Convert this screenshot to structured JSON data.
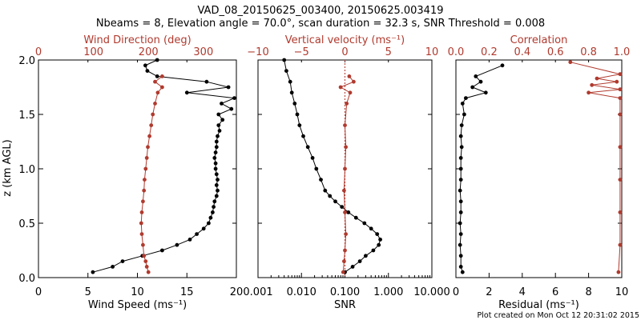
{
  "figure": {
    "title_line1": "VAD_08_20150625_003400, 20150625.003419",
    "title_line2": "Nbeams = 8, Elevation angle = 70.0°, scan duration = 32.3 s, SNR Threshold = 0.008",
    "footer": "Plot created on Mon Oct 12 20:31:02 2015",
    "y_label": "z (km AGL)",
    "colors": {
      "primary": "#000000",
      "secondary": "#b03a2e"
    }
  },
  "chart_data": [
    {
      "type": "line",
      "panel": "wind",
      "xlabel": "Wind Speed (ms⁻¹)",
      "x2label": "Wind Direction (deg)",
      "ylabel": "z (km AGL)",
      "xlim": [
        0,
        20
      ],
      "x2lim": [
        0,
        360
      ],
      "ylim": [
        0,
        2
      ],
      "xticks": [
        "0",
        "5",
        "10",
        "15",
        "20"
      ],
      "x2ticks": [
        "0",
        "100",
        "200",
        "300"
      ],
      "yticks": [
        "0.0",
        "0.5",
        "1.0",
        "1.5",
        "2.0"
      ],
      "series": [
        {
          "axis": "bottom",
          "color": "#000000",
          "points": [
            [
              5.5,
              0.05
            ],
            [
              7.5,
              0.1
            ],
            [
              8.5,
              0.15
            ],
            [
              10.5,
              0.2
            ],
            [
              12.5,
              0.25
            ],
            [
              14.0,
              0.3
            ],
            [
              15.3,
              0.35
            ],
            [
              16.0,
              0.4
            ],
            [
              16.7,
              0.45
            ],
            [
              17.2,
              0.5
            ],
            [
              17.4,
              0.55
            ],
            [
              17.6,
              0.6
            ],
            [
              17.7,
              0.65
            ],
            [
              17.8,
              0.7
            ],
            [
              18.0,
              0.75
            ],
            [
              18.1,
              0.8
            ],
            [
              18.0,
              0.85
            ],
            [
              18.1,
              0.9
            ],
            [
              18.0,
              0.95
            ],
            [
              17.9,
              1.0
            ],
            [
              17.9,
              1.05
            ],
            [
              17.8,
              1.1
            ],
            [
              17.9,
              1.15
            ],
            [
              18.0,
              1.2
            ],
            [
              18.0,
              1.25
            ],
            [
              18.1,
              1.3
            ],
            [
              18.3,
              1.35
            ],
            [
              18.2,
              1.4
            ],
            [
              18.6,
              1.45
            ],
            [
              18.2,
              1.5
            ],
            [
              19.5,
              1.55
            ],
            [
              18.5,
              1.6
            ],
            [
              19.8,
              1.65
            ],
            [
              15.0,
              1.7
            ],
            [
              19.2,
              1.75
            ],
            [
              17.0,
              1.8
            ],
            [
              12.0,
              1.85
            ],
            [
              11.0,
              1.9
            ],
            [
              10.8,
              1.95
            ],
            [
              12.0,
              2.0
            ]
          ]
        },
        {
          "axis": "top",
          "color": "#b03a2e",
          "points": [
            [
              200,
              0.05
            ],
            [
              197,
              0.1
            ],
            [
              195,
              0.15
            ],
            [
              192,
              0.2
            ],
            [
              190,
              0.3
            ],
            [
              188,
              0.4
            ],
            [
              187,
              0.5
            ],
            [
              188,
              0.6
            ],
            [
              190,
              0.7
            ],
            [
              192,
              0.8
            ],
            [
              193,
              0.9
            ],
            [
              195,
              1.0
            ],
            [
              197,
              1.1
            ],
            [
              199,
              1.2
            ],
            [
              202,
              1.3
            ],
            [
              205,
              1.4
            ],
            [
              208,
              1.5
            ],
            [
              212,
              1.6
            ],
            [
              217,
              1.7
            ],
            [
              225,
              1.75
            ],
            [
              212,
              1.8
            ],
            [
              225,
              1.85
            ]
          ]
        }
      ]
    },
    {
      "type": "line",
      "panel": "vertical",
      "xlabel": "SNR",
      "x2label": "Vertical velocity (ms⁻¹)",
      "xscale": "log",
      "xlim": [
        0.001,
        10
      ],
      "x2lim": [
        -10,
        10
      ],
      "ylim": [
        0,
        2
      ],
      "xticks": [
        "0.001",
        "0.010",
        "0.100",
        "1.000",
        "10.000"
      ],
      "x2ticks": [
        "−10",
        "−5",
        "0",
        "5",
        "10"
      ],
      "series": [
        {
          "axis": "bottom",
          "color": "#000000",
          "points": [
            [
              0.1,
              0.05
            ],
            [
              0.15,
              0.1
            ],
            [
              0.22,
              0.15
            ],
            [
              0.3,
              0.2
            ],
            [
              0.45,
              0.25
            ],
            [
              0.6,
              0.3
            ],
            [
              0.65,
              0.35
            ],
            [
              0.55,
              0.4
            ],
            [
              0.4,
              0.45
            ],
            [
              0.28,
              0.5
            ],
            [
              0.18,
              0.55
            ],
            [
              0.12,
              0.6
            ],
            [
              0.085,
              0.65
            ],
            [
              0.06,
              0.7
            ],
            [
              0.045,
              0.75
            ],
            [
              0.035,
              0.8
            ],
            [
              0.028,
              0.9
            ],
            [
              0.022,
              1.0
            ],
            [
              0.018,
              1.1
            ],
            [
              0.014,
              1.2
            ],
            [
              0.011,
              1.3
            ],
            [
              0.009,
              1.4
            ],
            [
              0.008,
              1.5
            ],
            [
              0.007,
              1.6
            ],
            [
              0.006,
              1.7
            ],
            [
              0.0055,
              1.8
            ],
            [
              0.0045,
              1.9
            ],
            [
              0.004,
              2.0
            ]
          ]
        },
        {
          "axis": "top",
          "color": "#b03a2e",
          "points": [
            [
              -0.2,
              0.05
            ],
            [
              -0.1,
              0.15
            ],
            [
              0.0,
              0.25
            ],
            [
              0.1,
              0.4
            ],
            [
              0.0,
              0.6
            ],
            [
              -0.1,
              0.8
            ],
            [
              0.0,
              1.0
            ],
            [
              0.1,
              1.2
            ],
            [
              0.0,
              1.4
            ],
            [
              0.2,
              1.6
            ],
            [
              0.6,
              1.7
            ],
            [
              -0.5,
              1.75
            ],
            [
              1.0,
              1.8
            ],
            [
              0.5,
              1.85
            ]
          ]
        }
      ]
    },
    {
      "type": "line",
      "panel": "quality",
      "xlabel": "Residual (ms⁻¹)",
      "x2label": "Correlation",
      "xlim": [
        0,
        10
      ],
      "x2lim": [
        0.0,
        1.0
      ],
      "ylim": [
        0,
        2
      ],
      "xticks": [
        "0",
        "2",
        "4",
        "6",
        "8",
        "10"
      ],
      "x2ticks": [
        "0.0",
        "0.2",
        "0.4",
        "0.6",
        "0.8",
        "1.0"
      ],
      "series": [
        {
          "axis": "bottom",
          "color": "#000000",
          "points": [
            [
              0.4,
              0.05
            ],
            [
              0.3,
              0.1
            ],
            [
              0.3,
              0.2
            ],
            [
              0.25,
              0.3
            ],
            [
              0.3,
              0.4
            ],
            [
              0.25,
              0.5
            ],
            [
              0.3,
              0.6
            ],
            [
              0.3,
              0.7
            ],
            [
              0.25,
              0.8
            ],
            [
              0.3,
              0.9
            ],
            [
              0.3,
              1.0
            ],
            [
              0.3,
              1.1
            ],
            [
              0.35,
              1.2
            ],
            [
              0.3,
              1.3
            ],
            [
              0.35,
              1.4
            ],
            [
              0.5,
              1.5
            ],
            [
              0.4,
              1.6
            ],
            [
              0.6,
              1.65
            ],
            [
              1.8,
              1.7
            ],
            [
              1.0,
              1.75
            ],
            [
              1.5,
              1.8
            ],
            [
              1.2,
              1.85
            ],
            [
              2.8,
              1.95
            ]
          ]
        },
        {
          "axis": "top",
          "color": "#b03a2e",
          "points": [
            [
              0.98,
              0.05
            ],
            [
              0.99,
              0.3
            ],
            [
              0.99,
              0.6
            ],
            [
              0.99,
              0.9
            ],
            [
              0.99,
              1.2
            ],
            [
              0.99,
              1.5
            ],
            [
              0.99,
              1.65
            ],
            [
              0.8,
              1.7
            ],
            [
              0.99,
              1.73
            ],
            [
              0.82,
              1.77
            ],
            [
              0.97,
              1.8
            ],
            [
              0.85,
              1.83
            ],
            [
              0.99,
              1.87
            ],
            [
              0.69,
              1.98
            ]
          ]
        }
      ]
    }
  ]
}
